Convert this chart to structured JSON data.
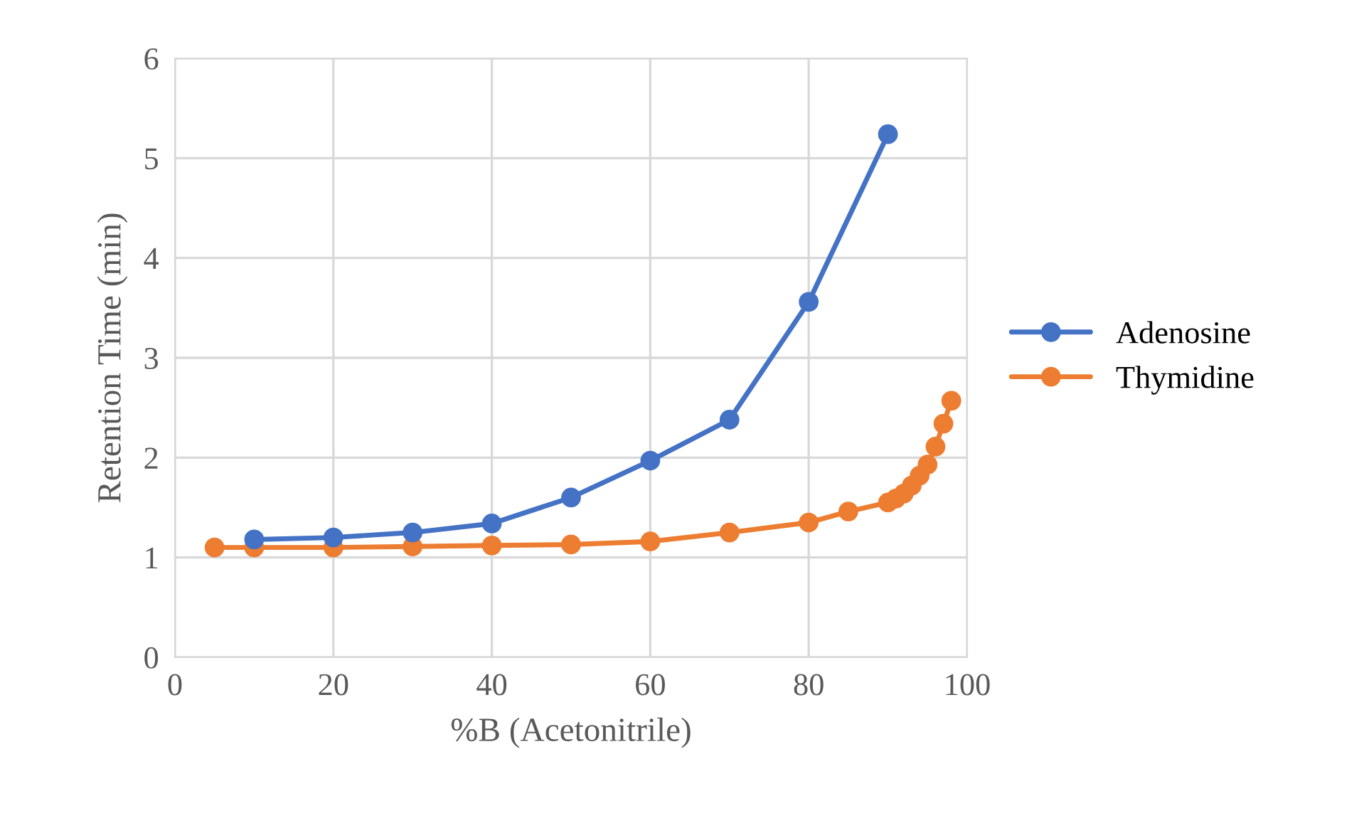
{
  "chart_data": {
    "type": "line",
    "xlabel": "%B (Acetonitrile)",
    "ylabel": "Retention Time (min)",
    "xlim": [
      0,
      100
    ],
    "xticks": [
      0,
      20,
      40,
      60,
      80,
      100
    ],
    "ylim": [
      0,
      6
    ],
    "yticks": [
      0,
      1,
      2,
      3,
      4,
      5,
      6
    ],
    "grid": true,
    "legend": "right",
    "marker": "circle",
    "line_style": "solid",
    "series": [
      {
        "name": "Adenosine",
        "color": "#4472c4",
        "x": [
          10,
          20,
          30,
          40,
          50,
          60,
          70,
          80,
          90
        ],
        "values": [
          1.18,
          1.2,
          1.25,
          1.34,
          1.6,
          1.97,
          2.38,
          3.56,
          5.24
        ]
      },
      {
        "name": "Thymidine",
        "color": "#ed7d31",
        "x": [
          5,
          10,
          20,
          30,
          40,
          50,
          60,
          70,
          80,
          85,
          90,
          91,
          92,
          93,
          94,
          95,
          96,
          97,
          98
        ],
        "values": [
          1.1,
          1.1,
          1.1,
          1.11,
          1.12,
          1.13,
          1.16,
          1.25,
          1.35,
          1.46,
          1.55,
          1.59,
          1.64,
          1.72,
          1.82,
          1.93,
          2.11,
          2.34,
          2.57
        ]
      }
    ]
  }
}
